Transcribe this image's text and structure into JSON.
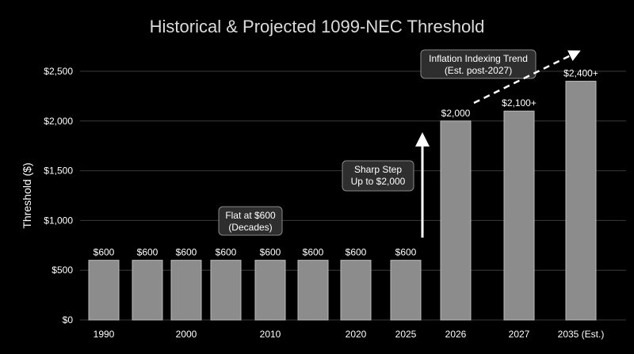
{
  "chart_data": {
    "type": "bar",
    "title": "Historical & Projected 1099-NEC Threshold",
    "xlabel": "",
    "ylabel": "Threshold ($)",
    "ylim": [
      0,
      2500
    ],
    "yticks": [
      0,
      500,
      1000,
      1500,
      2000,
      2500
    ],
    "ytick_labels": [
      "$0",
      "$500",
      "$1,000",
      "$1,500",
      "$2,000",
      "$2,500"
    ],
    "grid": true,
    "bars": [
      {
        "value": 600,
        "label": "$600",
        "category": "1990"
      },
      {
        "value": 600,
        "label": "$600",
        "category": ""
      },
      {
        "value": 600,
        "label": "$600",
        "category": "2000"
      },
      {
        "value": 600,
        "label": "$600",
        "category": ""
      },
      {
        "value": 600,
        "label": "$600",
        "category": "2010"
      },
      {
        "value": 600,
        "label": "$600",
        "category": ""
      },
      {
        "value": 600,
        "label": "$600",
        "category": "2020"
      },
      {
        "value": 600,
        "label": "$600",
        "category": "2025"
      },
      {
        "value": 2000,
        "label": "$2,000",
        "category": "2026"
      },
      {
        "value": 2100,
        "label": "$2,100+",
        "category": "2027"
      },
      {
        "value": 2400,
        "label": "$2,400+",
        "category": "2035 (Est.)"
      }
    ],
    "annotations": [
      {
        "text_lines": [
          "Flat at $600",
          "(Decades)"
        ]
      },
      {
        "text_lines": [
          "Sharp Step",
          "Up to $2,000"
        ]
      },
      {
        "text_lines": [
          "Inflation Indexing Trend",
          "(Est. post-2027)"
        ]
      }
    ],
    "colors": {
      "background": "#000000",
      "bar_fill": "#8c8c8c",
      "bar_stroke": "#bdbdbd",
      "grid": "#3a3a3a",
      "annotation_box": "#2e2e2e",
      "arrow": "#ffffff"
    }
  }
}
